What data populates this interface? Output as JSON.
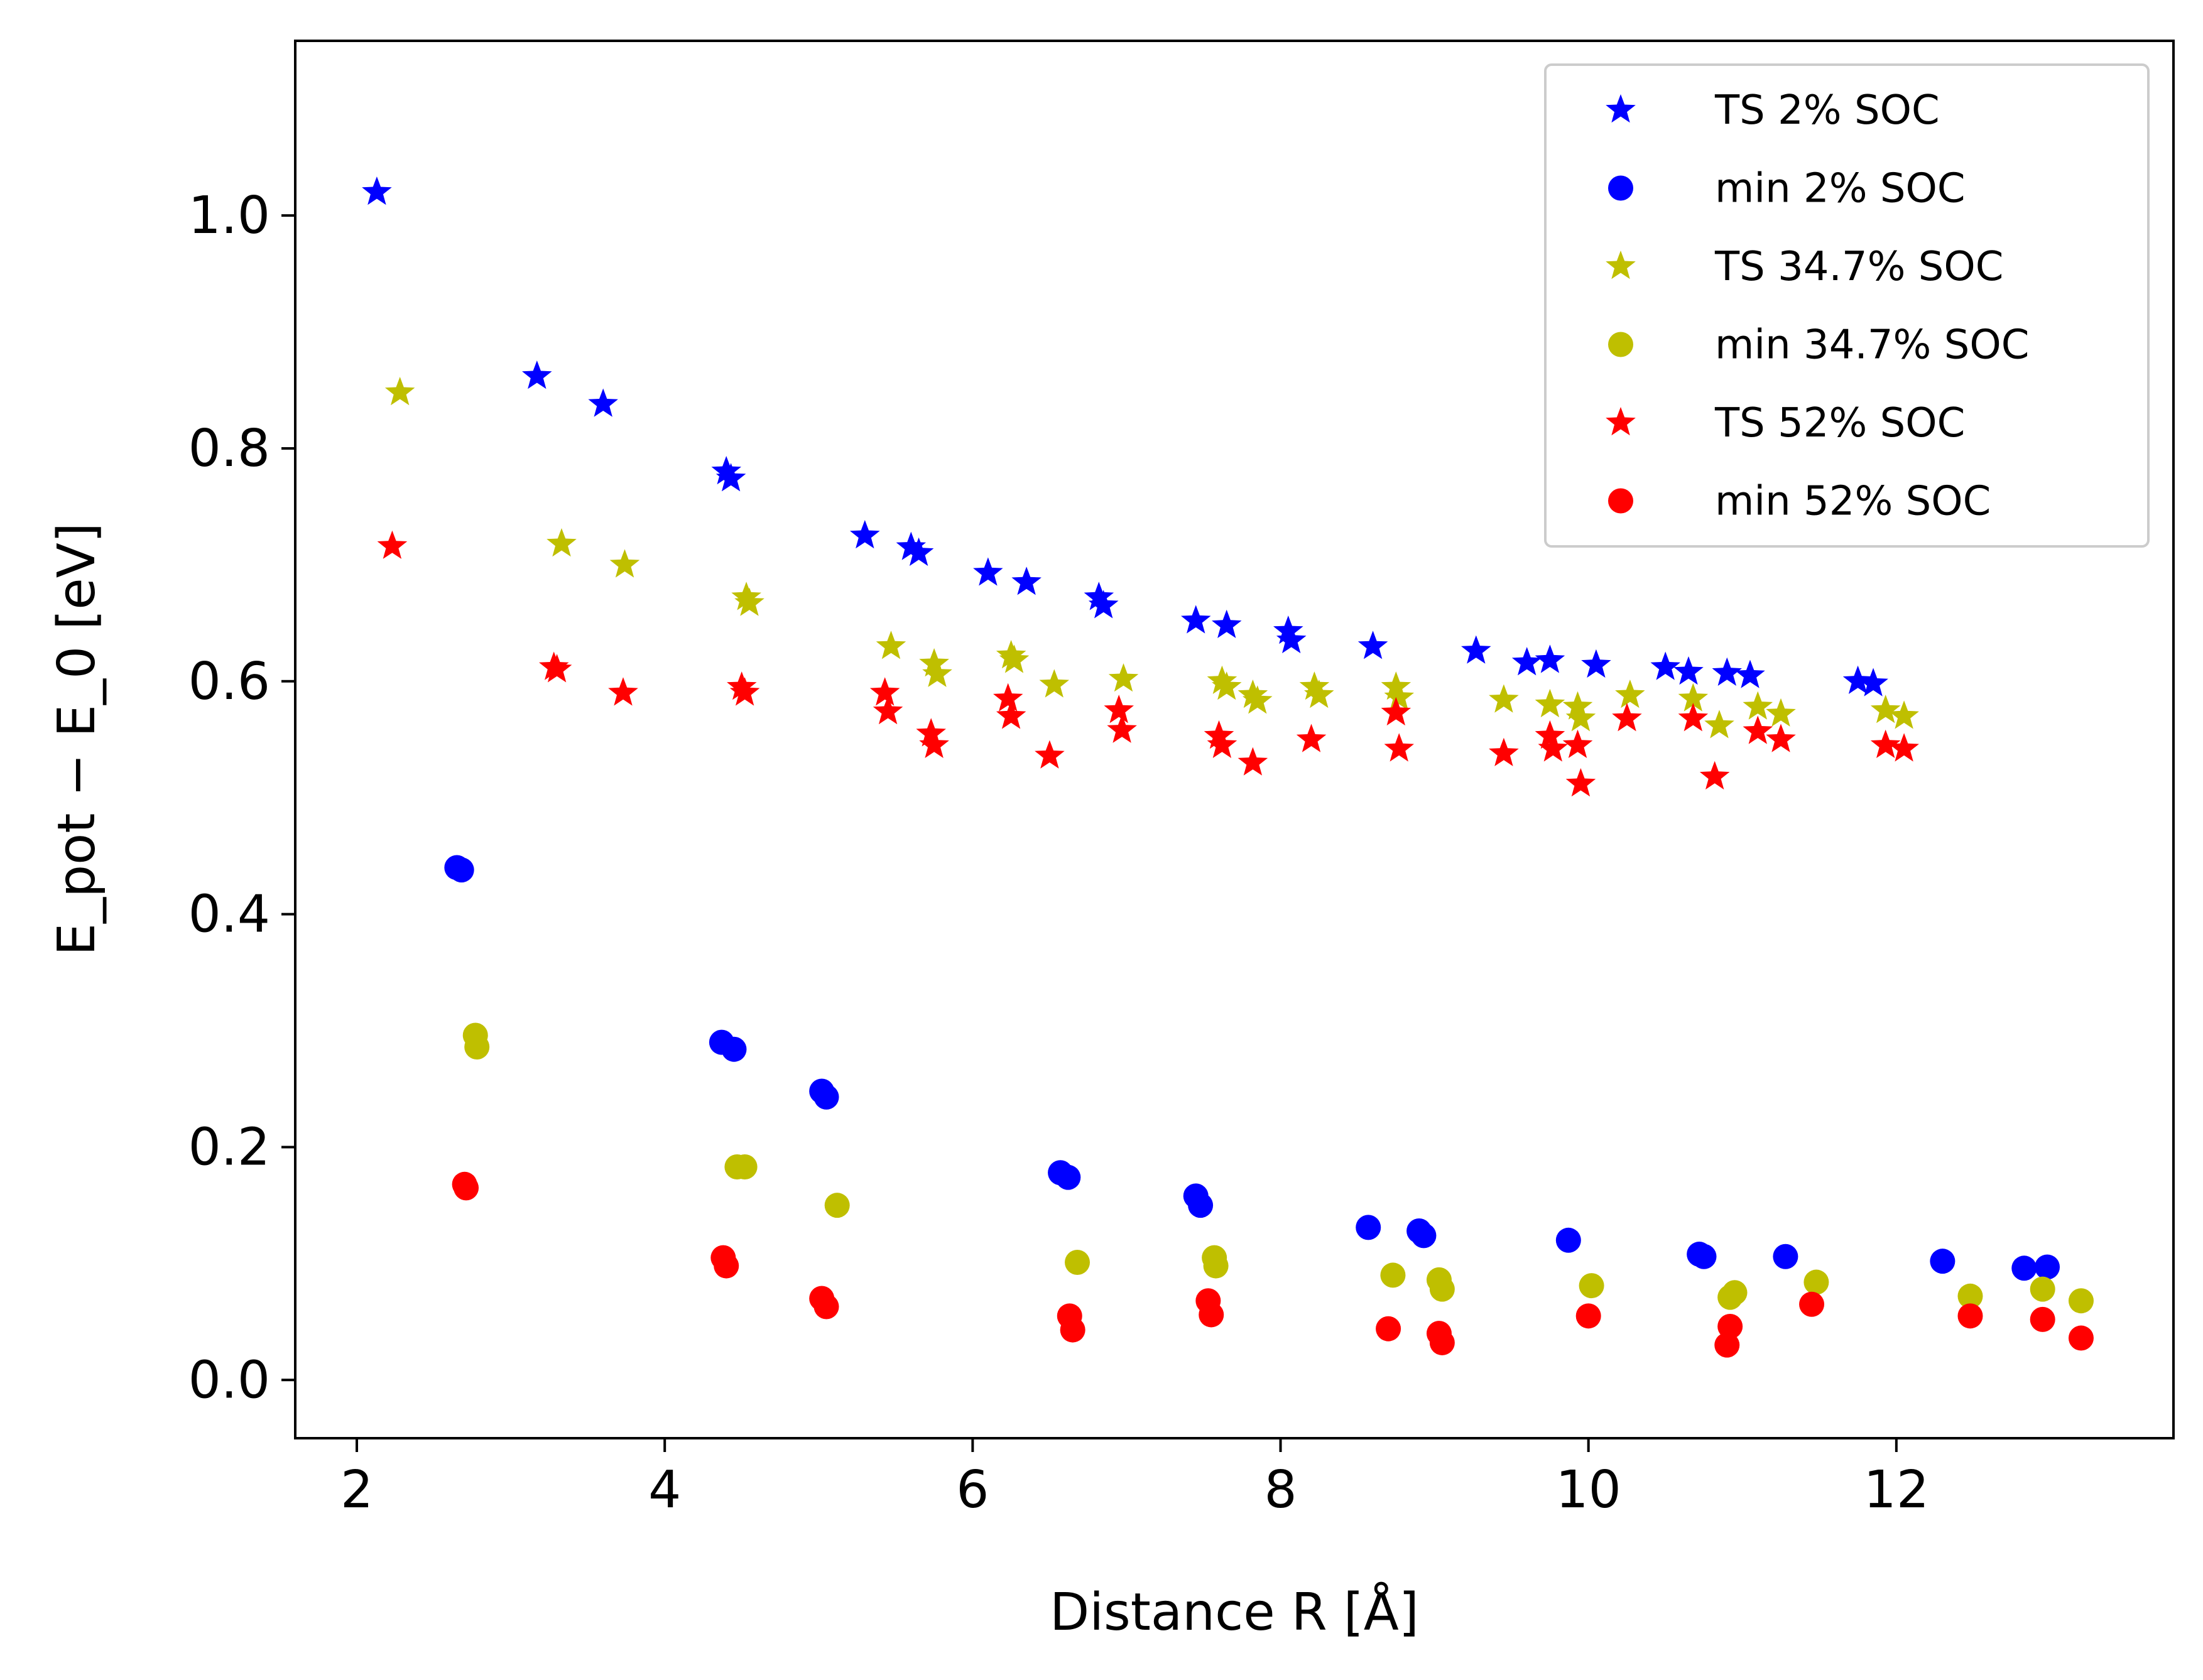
{
  "chart_data": {
    "type": "scatter",
    "title": "",
    "xlabel": "Distance R [Å]",
    "ylabel": "E_pot − E_0 [eV]",
    "xlim": [
      1.6,
      13.8
    ],
    "ylim": [
      -0.05,
      1.15
    ],
    "xticks": [
      2,
      4,
      6,
      8,
      10,
      12
    ],
    "yticks": [
      0.0,
      0.2,
      0.4,
      0.6,
      0.8,
      1.0
    ],
    "xtick_labels": [
      "2",
      "4",
      "6",
      "8",
      "10",
      "12"
    ],
    "ytick_labels": [
      "0.0",
      "0.2",
      "0.4",
      "0.6",
      "0.8",
      "1.0"
    ],
    "legend_position": "top-right",
    "series": [
      {
        "name": "TS 2% SOC",
        "label": "TS 2% SOC",
        "marker": "star",
        "color": "#0000ff",
        "points": [
          [
            2.13,
            1.02
          ],
          [
            3.17,
            0.862
          ],
          [
            3.6,
            0.838
          ],
          [
            4.4,
            0.78
          ],
          [
            4.43,
            0.774
          ],
          [
            5.3,
            0.725
          ],
          [
            5.6,
            0.715
          ],
          [
            5.65,
            0.71
          ],
          [
            6.1,
            0.693
          ],
          [
            6.35,
            0.685
          ],
          [
            6.82,
            0.672
          ],
          [
            6.85,
            0.665
          ],
          [
            7.45,
            0.652
          ],
          [
            7.65,
            0.648
          ],
          [
            8.05,
            0.643
          ],
          [
            8.07,
            0.635
          ],
          [
            8.6,
            0.63
          ],
          [
            9.27,
            0.626
          ],
          [
            9.6,
            0.616
          ],
          [
            9.75,
            0.618
          ],
          [
            10.05,
            0.614
          ],
          [
            10.5,
            0.612
          ],
          [
            10.65,
            0.608
          ],
          [
            10.9,
            0.607
          ],
          [
            11.05,
            0.605
          ],
          [
            11.75,
            0.6
          ],
          [
            11.85,
            0.598
          ]
        ]
      },
      {
        "name": "min 2% SOC",
        "label": "min 2% SOC",
        "marker": "circle",
        "color": "#0000ff",
        "points": [
          [
            2.65,
            0.44
          ],
          [
            2.68,
            0.438
          ],
          [
            4.37,
            0.29
          ],
          [
            4.45,
            0.284
          ],
          [
            5.02,
            0.248
          ],
          [
            5.05,
            0.243
          ],
          [
            6.57,
            0.178
          ],
          [
            6.62,
            0.174
          ],
          [
            7.45,
            0.158
          ],
          [
            7.48,
            0.15
          ],
          [
            8.57,
            0.131
          ],
          [
            8.9,
            0.128
          ],
          [
            8.93,
            0.124
          ],
          [
            9.87,
            0.12
          ],
          [
            10.72,
            0.108
          ],
          [
            10.75,
            0.106
          ],
          [
            11.28,
            0.106
          ],
          [
            12.3,
            0.102
          ],
          [
            12.83,
            0.096
          ],
          [
            12.98,
            0.097
          ]
        ]
      },
      {
        "name": "TS 34.7% SOC",
        "label": "TS 34.7% SOC",
        "marker": "star",
        "color": "#bfbf00",
        "points": [
          [
            2.28,
            0.848
          ],
          [
            3.33,
            0.718
          ],
          [
            3.74,
            0.7
          ],
          [
            4.53,
            0.672
          ],
          [
            4.55,
            0.667
          ],
          [
            5.47,
            0.63
          ],
          [
            5.75,
            0.615
          ],
          [
            5.77,
            0.606
          ],
          [
            6.25,
            0.622
          ],
          [
            6.27,
            0.618
          ],
          [
            6.53,
            0.597
          ],
          [
            6.98,
            0.602
          ],
          [
            7.62,
            0.6
          ],
          [
            7.65,
            0.595
          ],
          [
            7.82,
            0.588
          ],
          [
            7.85,
            0.583
          ],
          [
            8.22,
            0.595
          ],
          [
            8.25,
            0.588
          ],
          [
            8.75,
            0.595
          ],
          [
            8.77,
            0.586
          ],
          [
            9.45,
            0.584
          ],
          [
            9.75,
            0.58
          ],
          [
            9.93,
            0.578
          ],
          [
            9.95,
            0.568
          ],
          [
            10.27,
            0.588
          ],
          [
            10.68,
            0.585
          ],
          [
            10.85,
            0.562
          ],
          [
            11.1,
            0.578
          ],
          [
            11.25,
            0.572
          ],
          [
            11.93,
            0.575
          ],
          [
            12.05,
            0.57
          ]
        ]
      },
      {
        "name": "min 34.7% SOC",
        "label": "min 34.7% SOC",
        "marker": "circle",
        "color": "#bfbf00",
        "points": [
          [
            2.77,
            0.296
          ],
          [
            2.78,
            0.286
          ],
          [
            4.47,
            0.183
          ],
          [
            4.52,
            0.183
          ],
          [
            5.12,
            0.15
          ],
          [
            6.68,
            0.101
          ],
          [
            7.57,
            0.105
          ],
          [
            7.58,
            0.098
          ],
          [
            8.73,
            0.09
          ],
          [
            9.03,
            0.086
          ],
          [
            9.05,
            0.078
          ],
          [
            10.02,
            0.081
          ],
          [
            10.92,
            0.071
          ],
          [
            10.95,
            0.075
          ],
          [
            11.48,
            0.084
          ],
          [
            12.48,
            0.072
          ],
          [
            12.95,
            0.078
          ],
          [
            13.2,
            0.068
          ]
        ]
      },
      {
        "name": "TS 52% SOC",
        "label": "TS 52% SOC",
        "marker": "star",
        "color": "#ff0000",
        "points": [
          [
            2.23,
            0.716
          ],
          [
            3.28,
            0.612
          ],
          [
            3.3,
            0.61
          ],
          [
            3.73,
            0.59
          ],
          [
            4.5,
            0.595
          ],
          [
            4.52,
            0.59
          ],
          [
            5.43,
            0.59
          ],
          [
            5.45,
            0.574
          ],
          [
            5.73,
            0.555
          ],
          [
            5.75,
            0.545
          ],
          [
            6.23,
            0.585
          ],
          [
            6.25,
            0.57
          ],
          [
            6.5,
            0.536
          ],
          [
            6.95,
            0.575
          ],
          [
            6.97,
            0.558
          ],
          [
            7.6,
            0.553
          ],
          [
            7.62,
            0.545
          ],
          [
            7.82,
            0.53
          ],
          [
            8.2,
            0.55
          ],
          [
            8.75,
            0.573
          ],
          [
            8.77,
            0.542
          ],
          [
            9.45,
            0.538
          ],
          [
            9.75,
            0.553
          ],
          [
            9.77,
            0.542
          ],
          [
            9.93,
            0.545
          ],
          [
            9.95,
            0.512
          ],
          [
            10.25,
            0.568
          ],
          [
            10.68,
            0.568
          ],
          [
            10.82,
            0.518
          ],
          [
            11.1,
            0.557
          ],
          [
            11.25,
            0.55
          ],
          [
            11.93,
            0.545
          ],
          [
            12.05,
            0.542
          ]
        ]
      },
      {
        "name": "min 52% SOC",
        "label": "min 52% SOC",
        "marker": "circle",
        "color": "#ff0000",
        "points": [
          [
            2.7,
            0.168
          ],
          [
            2.71,
            0.165
          ],
          [
            4.38,
            0.105
          ],
          [
            4.4,
            0.098
          ],
          [
            5.02,
            0.07
          ],
          [
            5.05,
            0.063
          ],
          [
            6.63,
            0.055
          ],
          [
            6.65,
            0.043
          ],
          [
            7.53,
            0.068
          ],
          [
            7.55,
            0.056
          ],
          [
            8.7,
            0.044
          ],
          [
            9.03,
            0.04
          ],
          [
            9.05,
            0.032
          ],
          [
            10.0,
            0.055
          ],
          [
            10.9,
            0.03
          ],
          [
            10.92,
            0.046
          ],
          [
            11.45,
            0.065
          ],
          [
            12.48,
            0.055
          ],
          [
            12.95,
            0.052
          ],
          [
            13.2,
            0.036
          ]
        ]
      }
    ]
  }
}
